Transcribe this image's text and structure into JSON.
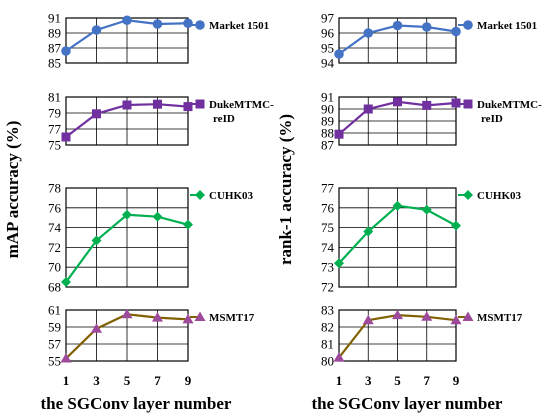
{
  "chart_data": [
    {
      "type": "line",
      "ylabel": "mAP accuracy (%)",
      "xlabel": "the SGConv layer number",
      "x": [
        1,
        3,
        5,
        7,
        9
      ],
      "xticks": [
        "1",
        "3",
        "5",
        "7",
        "9"
      ],
      "grid": true,
      "legend_placement": "right of each panel",
      "panels": [
        {
          "series": [
            {
              "name": "Market 1501",
              "values": [
                86.6,
                89.4,
                90.7,
                90.2,
                90.3
              ],
              "color": "#4472c4",
              "marker": "circle",
              "line_color": "#4472c4"
            }
          ],
          "ylim": [
            85,
            91
          ],
          "yticks": [
            "85",
            "87",
            "89",
            "91"
          ]
        },
        {
          "series": [
            {
              "name": "DukeMTMC-reID",
              "values": [
                76.0,
                78.9,
                80.0,
                80.1,
                79.8
              ],
              "color": "#7030a0",
              "marker": "square",
              "line_color": "#7030a0"
            }
          ],
          "ylim": [
            75,
            81
          ],
          "yticks": [
            "75",
            "77",
            "79",
            "81"
          ]
        },
        {
          "series": [
            {
              "name": "CUHK03",
              "values": [
                68.5,
                72.7,
                75.3,
                75.1,
                74.3
              ],
              "color": "#00b050",
              "marker": "diamond",
              "line_color": "#00b050"
            }
          ],
          "ylim": [
            68,
            78
          ],
          "yticks": [
            "68",
            "70",
            "72",
            "74",
            "76",
            "78"
          ]
        },
        {
          "series": [
            {
              "name": "MSMT17",
              "values": [
                55.3,
                58.8,
                60.5,
                60.1,
                59.9
              ],
              "color": "#9e4a9a",
              "marker": "triangle",
              "line_color": "#806000"
            }
          ],
          "ylim": [
            55,
            61
          ],
          "yticks": [
            "55",
            "57",
            "59",
            "61"
          ]
        }
      ]
    },
    {
      "type": "line",
      "ylabel": "rank-1 accuracy (%)",
      "xlabel": "the SGConv layer number",
      "x": [
        1,
        3,
        5,
        7,
        9
      ],
      "xticks": [
        "1",
        "3",
        "5",
        "7",
        "9"
      ],
      "grid": true,
      "legend_placement": "right of each panel",
      "panels": [
        {
          "series": [
            {
              "name": "Market 1501",
              "values": [
                94.6,
                96.0,
                96.5,
                96.4,
                96.1
              ],
              "color": "#4472c4",
              "marker": "circle",
              "line_color": "#4472c4"
            }
          ],
          "ylim": [
            94,
            97
          ],
          "yticks": [
            "94",
            "95",
            "96",
            "97"
          ]
        },
        {
          "series": [
            {
              "name": "DukeMTMC-reID",
              "values": [
                87.9,
                90.0,
                90.6,
                90.3,
                90.5
              ],
              "color": "#7030a0",
              "marker": "square",
              "line_color": "#7030a0"
            }
          ],
          "ylim": [
            87,
            91
          ],
          "yticks": [
            "87",
            "88",
            "89",
            "90",
            "91"
          ]
        },
        {
          "series": [
            {
              "name": "CUHK03",
              "values": [
                73.2,
                74.8,
                76.1,
                75.9,
                75.1
              ],
              "color": "#00b050",
              "marker": "diamond",
              "line_color": "#00b050"
            }
          ],
          "ylim": [
            72,
            77
          ],
          "yticks": [
            "72",
            "73",
            "74",
            "75",
            "76",
            "77"
          ]
        },
        {
          "series": [
            {
              "name": "MSMT17",
              "values": [
                80.2,
                82.4,
                82.7,
                82.6,
                82.4
              ],
              "color": "#9e4a9a",
              "marker": "triangle",
              "line_color": "#806000"
            }
          ],
          "ylim": [
            80,
            83
          ],
          "yticks": [
            "80",
            "81",
            "82",
            "83"
          ]
        }
      ]
    }
  ]
}
